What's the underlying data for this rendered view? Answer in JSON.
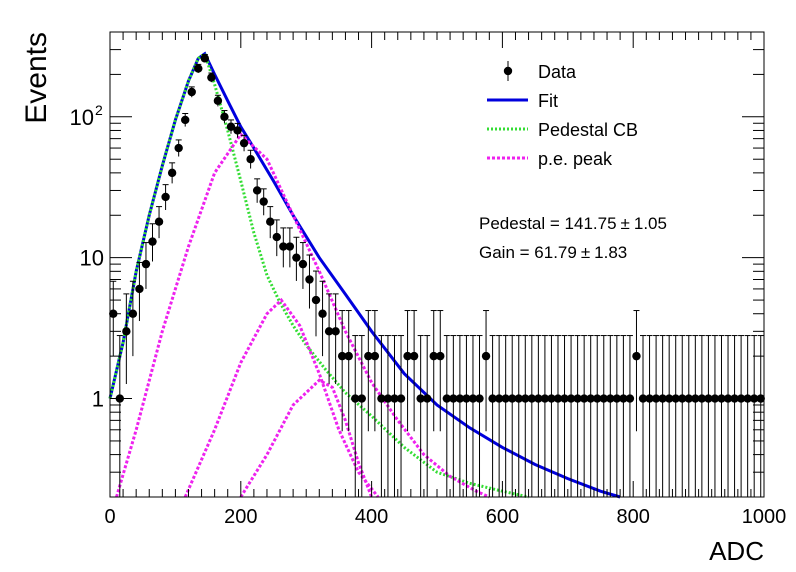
{
  "chart_data": {
    "type": "scatter",
    "xlabel": "ADC",
    "ylabel": "Events",
    "xlim": [
      0,
      1000
    ],
    "ylim": [
      0.2,
      400
    ],
    "yscale": "log",
    "grid": false,
    "legend_position": "top-right",
    "x_ticks": [
      {
        "value": 0,
        "label": "0"
      },
      {
        "value": 200,
        "label": "200"
      },
      {
        "value": 400,
        "label": "400"
      },
      {
        "value": 600,
        "label": "600"
      },
      {
        "value": 800,
        "label": "800"
      },
      {
        "value": 1000,
        "label": "1000"
      }
    ],
    "y_ticks": [
      {
        "value": 1,
        "label": "1"
      },
      {
        "value": 10,
        "label": "10"
      },
      {
        "value": 100,
        "label": "10",
        "sup": "2"
      }
    ],
    "legend": [
      {
        "name": "Data",
        "style": "marker",
        "color": "#000000"
      },
      {
        "name": "Fit",
        "style": "solid",
        "color": "#0000dd"
      },
      {
        "name": "Pedestal CB",
        "style": "dotted",
        "color": "#33dd33"
      },
      {
        "name": "p.e. peak",
        "style": "dotted",
        "color": "#ee22ee"
      }
    ],
    "annotations": [
      {
        "text": "Pedestal = 141.75",
        "pm": "±",
        "err": "1.05"
      },
      {
        "text": "Gain = 61.79",
        "pm": "±",
        "err": "1.83"
      }
    ],
    "series": [
      {
        "name": "Data",
        "kind": "points_with_errors",
        "x": [
          5,
          15,
          25,
          35,
          45,
          55,
          65,
          75,
          85,
          95,
          105,
          115,
          125,
          135,
          145,
          155,
          165,
          175,
          185,
          195,
          205,
          215,
          225,
          235,
          245,
          255,
          265,
          275,
          285,
          295,
          305,
          315,
          325,
          335,
          345,
          355,
          365,
          375,
          385,
          395,
          405,
          415,
          425,
          435,
          445,
          455,
          465,
          475,
          485,
          495,
          505,
          515,
          525,
          535,
          545,
          555,
          565,
          575,
          585,
          595,
          605,
          615,
          625,
          635,
          645,
          655,
          665,
          675,
          685,
          695,
          705,
          715,
          725,
          735,
          745,
          755,
          765,
          775,
          785,
          795,
          805,
          815,
          825,
          835,
          845,
          855,
          865,
          875,
          885,
          895,
          905,
          915,
          925,
          935,
          945,
          955,
          965,
          975,
          985,
          995
        ],
        "y": [
          4,
          1,
          3,
          4,
          6,
          9,
          13,
          18,
          27,
          40,
          60,
          95,
          150,
          220,
          260,
          190,
          130,
          100,
          85,
          80,
          65,
          50,
          30,
          25,
          18,
          14,
          12,
          12,
          10,
          9,
          7,
          5,
          4,
          3,
          3,
          2,
          2,
          1,
          1,
          2,
          2,
          1,
          1,
          1,
          1,
          2,
          2,
          1,
          1,
          2,
          2,
          1,
          1,
          1,
          1,
          1,
          1,
          2,
          1,
          1,
          1,
          1,
          1,
          1,
          1,
          1,
          1,
          1,
          1,
          1,
          1,
          1,
          1,
          1,
          1,
          1,
          1,
          1,
          1,
          1,
          2,
          1,
          1,
          1,
          1,
          1,
          1,
          1,
          1,
          1,
          1,
          1,
          1,
          1,
          1,
          1,
          1,
          1,
          1,
          1
        ]
      },
      {
        "name": "Fit",
        "kind": "line",
        "x": [
          0,
          20,
          40,
          60,
          80,
          100,
          120,
          135,
          145,
          160,
          180,
          200,
          220,
          250,
          280,
          320,
          360,
          400,
          450,
          500,
          550,
          600,
          650,
          700,
          750,
          780
        ],
        "y": [
          1,
          2.5,
          8,
          20,
          45,
          95,
          180,
          260,
          280,
          200,
          130,
          85,
          60,
          35,
          20,
          10,
          5.5,
          3,
          1.5,
          0.9,
          0.62,
          0.45,
          0.34,
          0.27,
          0.22,
          0.2
        ]
      },
      {
        "name": "Pedestal CB",
        "kind": "dotted",
        "x": [
          0,
          20,
          40,
          60,
          80,
          100,
          120,
          135,
          145,
          160,
          180,
          200,
          220,
          240,
          260,
          280,
          300,
          330,
          360,
          400,
          450,
          500,
          550,
          600,
          640
        ],
        "y": [
          1,
          2.5,
          8,
          20,
          45,
          95,
          180,
          260,
          280,
          170,
          80,
          35,
          15,
          7.5,
          4.8,
          3.3,
          2.4,
          1.6,
          1.1,
          0.75,
          0.45,
          0.3,
          0.25,
          0.22,
          0.2
        ]
      },
      {
        "name": "p.e. peak 1",
        "kind": "dotted",
        "x": [
          10,
          40,
          80,
          120,
          160,
          200,
          240,
          280,
          320,
          360,
          400,
          440,
          480,
          520,
          560,
          580
        ],
        "y": [
          0.2,
          0.6,
          3,
          12,
          40,
          75,
          50,
          20,
          8,
          3,
          1.3,
          0.7,
          0.4,
          0.28,
          0.22,
          0.2
        ]
      },
      {
        "name": "p.e. peak 2",
        "kind": "dotted",
        "x": [
          115,
          160,
          200,
          240,
          262,
          290,
          320,
          350,
          380,
          410
        ],
        "y": [
          0.2,
          0.6,
          1.8,
          4,
          5,
          3.3,
          1.5,
          0.6,
          0.3,
          0.2
        ]
      },
      {
        "name": "p.e. peak 3",
        "kind": "dotted",
        "x": [
          200,
          240,
          280,
          320,
          340,
          360,
          380,
          400
        ],
        "y": [
          0.2,
          0.4,
          0.9,
          1.35,
          1.2,
          0.7,
          0.35,
          0.2
        ]
      }
    ]
  }
}
